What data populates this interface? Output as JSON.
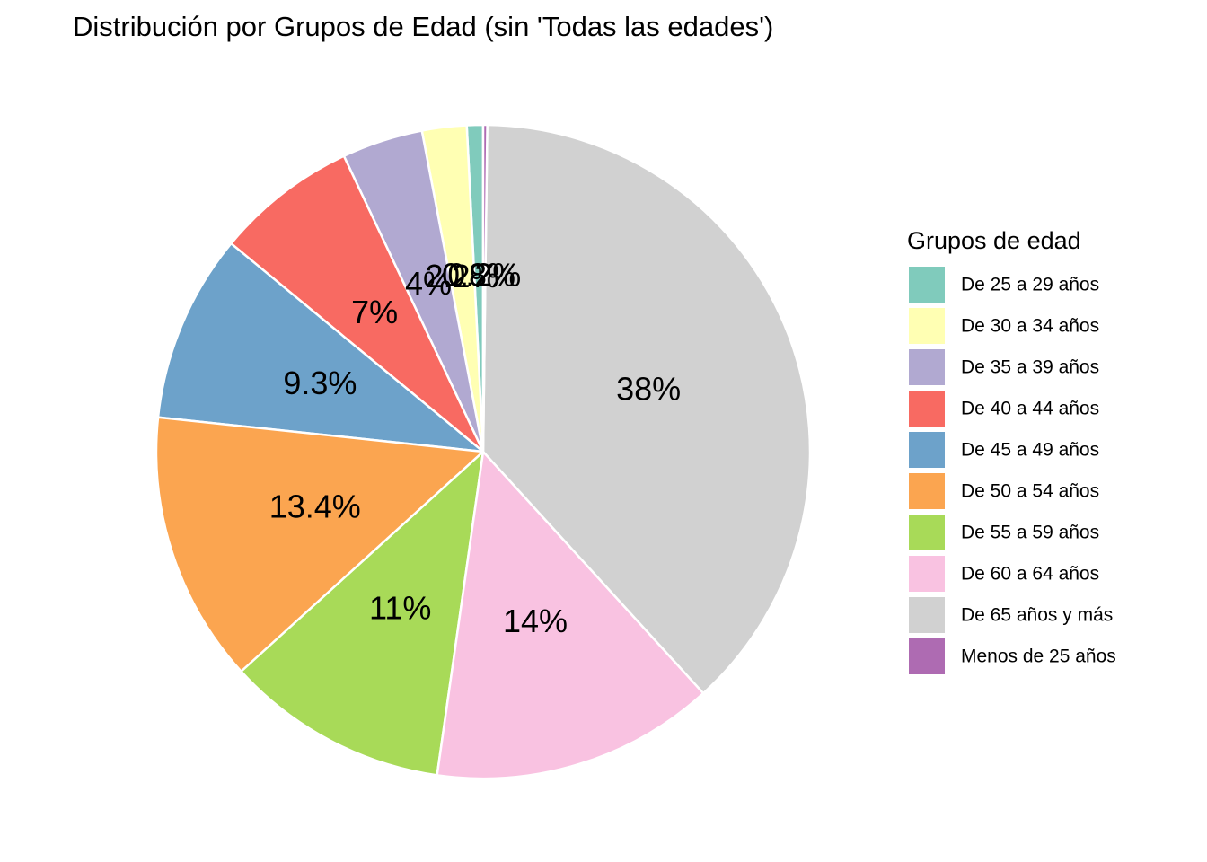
{
  "chart_data": {
    "type": "pie",
    "title": "Distribución por Grupos de Edad (sin 'Todas las edades')",
    "legend_title": "Grupos de edad",
    "legend_position": "right",
    "start_angle": "top",
    "direction": "counterclockwise",
    "series": [
      {
        "name": "De 25 a 29 años",
        "value": 0.8,
        "label": "0.8%",
        "color": "#80CBBC"
      },
      {
        "name": "De 30 a 34 años",
        "value": 2.2,
        "label": "2.2%",
        "color": "#FFFFB3"
      },
      {
        "name": "De 35 a 39 años",
        "value": 4.0,
        "label": "4%",
        "color": "#B1A9D1"
      },
      {
        "name": "De 40 a 44 años",
        "value": 7.0,
        "label": "7%",
        "color": "#F86A62"
      },
      {
        "name": "De 45 a 49 años",
        "value": 9.3,
        "label": "9.3%",
        "color": "#6DA2CA"
      },
      {
        "name": "De 50 a 54 años",
        "value": 13.4,
        "label": "13.4%",
        "color": "#FBA550"
      },
      {
        "name": "De 55 a 59 años",
        "value": 11.0,
        "label": "11%",
        "color": "#A8DA58"
      },
      {
        "name": "De 60 a 64 años",
        "value": 14.0,
        "label": "14%",
        "color": "#F9C2E1"
      },
      {
        "name": "De 65 años y más",
        "value": 38.0,
        "label": "38%",
        "color": "#D1D1D1"
      },
      {
        "name": "Menos de 25 años",
        "value": 0.2,
        "label": "0.2%",
        "color": "#AE6BB2"
      }
    ]
  }
}
